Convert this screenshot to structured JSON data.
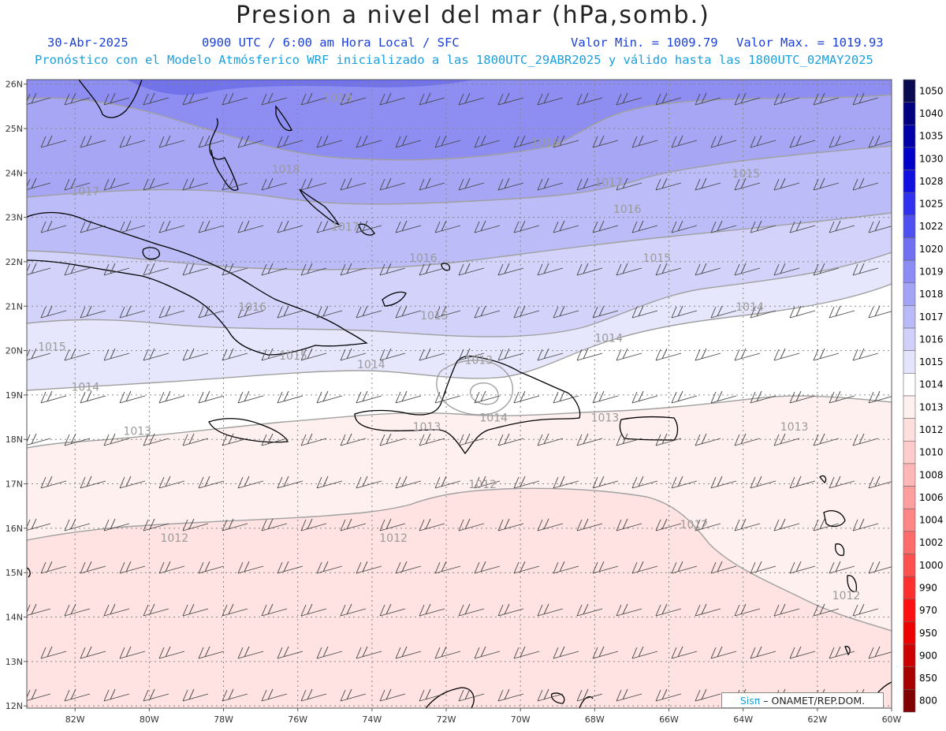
{
  "title": "Presion a nivel del mar (hPa,somb.)",
  "date": "30-Abr-2025",
  "time_info": "0900 UTC / 6:00 am Hora Local / SFC",
  "valor_min": "Valor Min. = 1009.79",
  "valor_max": "Valor Max. = 1019.93",
  "forecast_info": "Pronóstico con el Modelo Atmósferico WRF inicializado a las 1800UTC_29ABR2025 y válido hasta las  1800UTC_02MAY2025",
  "credit": {
    "brand": "Sisπ",
    "rest": " – ONAMET/REP.DOM."
  },
  "map": {
    "lat_labels": [
      "26N",
      "25N",
      "24N",
      "23N",
      "22N",
      "21N",
      "20N",
      "19N",
      "18N",
      "17N",
      "16N",
      "15N",
      "14N",
      "13N",
      "12N"
    ],
    "lon_labels": [
      "82W",
      "80W",
      "78W",
      "76W",
      "74W",
      "72W",
      "70W",
      "68W",
      "66W",
      "64W",
      "62W",
      "60W"
    ],
    "isobar_labels": [
      {
        "text": "1019",
        "lat": 25.6,
        "lon": -75.3
      },
      {
        "text": "1018",
        "lat": 24.6,
        "lon": -69.7
      },
      {
        "text": "1018",
        "lat": 24.0,
        "lon": -76.7
      },
      {
        "text": "1017",
        "lat": 23.7,
        "lon": -68.0
      },
      {
        "text": "1017",
        "lat": 23.5,
        "lon": -82.1
      },
      {
        "text": "1017",
        "lat": 22.7,
        "lon": -75.1
      },
      {
        "text": "1016",
        "lat": 23.1,
        "lon": -67.5
      },
      {
        "text": "1015",
        "lat": 23.9,
        "lon": -64.3
      },
      {
        "text": "1015",
        "lat": 22.0,
        "lon": -66.7
      },
      {
        "text": "1016",
        "lat": 22.0,
        "lon": -73.0
      },
      {
        "text": "1016",
        "lat": 20.9,
        "lon": -77.6
      },
      {
        "text": "1015",
        "lat": 20.7,
        "lon": -72.7
      },
      {
        "text": "1014",
        "lat": 20.9,
        "lon": -64.2
      },
      {
        "text": "1014",
        "lat": 20.2,
        "lon": -68.0
      },
      {
        "text": "1015",
        "lat": 20.0,
        "lon": -83.0
      },
      {
        "text": "1015",
        "lat": 19.8,
        "lon": -76.5
      },
      {
        "text": "1014",
        "lat": 19.6,
        "lon": -74.4
      },
      {
        "text": "1013",
        "lat": 19.7,
        "lon": -71.5
      },
      {
        "text": "1014",
        "lat": 19.1,
        "lon": -82.1
      },
      {
        "text": "1014",
        "lat": 18.4,
        "lon": -71.1
      },
      {
        "text": "1013",
        "lat": 18.4,
        "lon": -68.1
      },
      {
        "text": "1013",
        "lat": 18.2,
        "lon": -72.9
      },
      {
        "text": "1013",
        "lat": 18.2,
        "lon": -63.0
      },
      {
        "text": "1013",
        "lat": 18.1,
        "lon": -80.7
      },
      {
        "text": "1012",
        "lat": 16.9,
        "lon": -71.4
      },
      {
        "text": "1012",
        "lat": 16.0,
        "lon": -65.7
      },
      {
        "text": "1012",
        "lat": 15.7,
        "lon": -79.7
      },
      {
        "text": "1012",
        "lat": 15.7,
        "lon": -73.8
      },
      {
        "text": "1012",
        "lat": 14.4,
        "lon": -61.6
      }
    ]
  },
  "legend": [
    {
      "label": "1050",
      "color": "#0a0a50"
    },
    {
      "label": "1040",
      "color": "#000080"
    },
    {
      "label": "1035",
      "color": "#0000a8"
    },
    {
      "label": "1030",
      "color": "#0000c8"
    },
    {
      "label": "1028",
      "color": "#1010e0"
    },
    {
      "label": "1025",
      "color": "#3030ee"
    },
    {
      "label": "1022",
      "color": "#5050f0"
    },
    {
      "label": "1020",
      "color": "#7070f2"
    },
    {
      "label": "1019",
      "color": "#8c8cf4"
    },
    {
      "label": "1018",
      "color": "#a4a4f6"
    },
    {
      "label": "1017",
      "color": "#babaf8"
    },
    {
      "label": "1016",
      "color": "#d0d0fa"
    },
    {
      "label": "1015",
      "color": "#e4e4fc"
    },
    {
      "label": "1014",
      "color": "#ffffff"
    },
    {
      "label": "1013",
      "color": "#fff0f0"
    },
    {
      "label": "1012",
      "color": "#ffdede"
    },
    {
      "label": "1010",
      "color": "#ffcccc"
    },
    {
      "label": "1008",
      "color": "#ffb6b6"
    },
    {
      "label": "1006",
      "color": "#ff9e9e"
    },
    {
      "label": "1004",
      "color": "#ff8686"
    },
    {
      "label": "1002",
      "color": "#ff6c6c"
    },
    {
      "label": "1000",
      "color": "#ff5050"
    },
    {
      "label": "990",
      "color": "#ff3030"
    },
    {
      "label": "970",
      "color": "#ff1010"
    },
    {
      "label": "950",
      "color": "#ee0000"
    },
    {
      "label": "900",
      "color": "#cc0000"
    },
    {
      "label": "850",
      "color": "#a80000"
    },
    {
      "label": "800",
      "color": "#800000"
    }
  ]
}
